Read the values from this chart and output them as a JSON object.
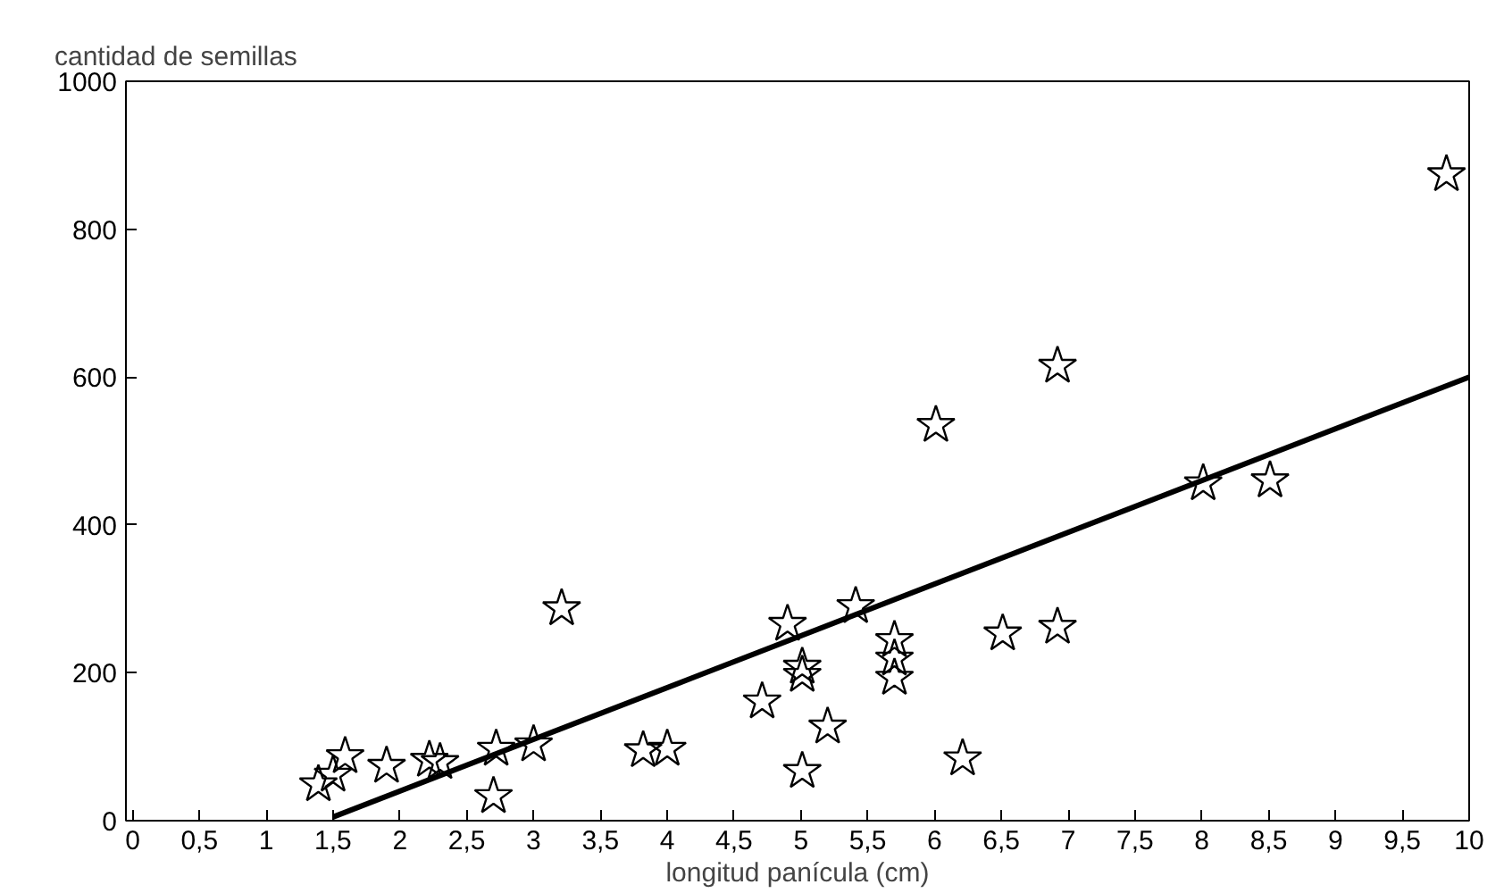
{
  "chart_data": {
    "type": "scatter",
    "xlabel": "longitud panícula (cm)",
    "ylabel": "cantidad de semillas",
    "marker": "star",
    "grid": false,
    "xlim": [
      -0.05,
      10
    ],
    "ylim": [
      0,
      1000
    ],
    "xticks": [
      0,
      {
        "value": 0.5,
        "label": "0,5"
      },
      1,
      {
        "value": 1.5,
        "label": "1,5"
      },
      2,
      {
        "value": 2.5,
        "label": "2,5"
      },
      3,
      {
        "value": 3.5,
        "label": "3,5"
      },
      4,
      {
        "value": 4.5,
        "label": "4,5"
      },
      5,
      {
        "value": 5.5,
        "label": "5,5"
      },
      6,
      {
        "value": 6.5,
        "label": "6,5"
      },
      7,
      {
        "value": 7.5,
        "label": "7,5"
      },
      8,
      {
        "value": 8.5,
        "label": "8,5"
      },
      9,
      {
        "value": 9.5,
        "label": "9,5"
      },
      10
    ],
    "yticks": [
      0,
      200,
      400,
      600,
      800,
      1000
    ],
    "series": [
      {
        "color": "#000000",
        "x": [
          1.39,
          1.5,
          1.59,
          1.9,
          2.22,
          2.3,
          2.72,
          2.7,
          3.0,
          3.21,
          3.82,
          4.0,
          4.71,
          4.9,
          5.01,
          5.01,
          5.01,
          5.2,
          5.41,
          5.7,
          5.7,
          5.7,
          6.01,
          6.21,
          6.51,
          6.92,
          6.92,
          8.01,
          8.51,
          9.83
        ],
        "values": [
          49,
          62,
          87,
          74,
          82,
          79,
          97,
          33,
          103,
          287,
          95,
          97,
          161,
          266,
          208,
          197,
          67,
          127,
          290,
          244,
          219,
          193,
          535,
          84,
          253,
          615,
          262,
          456,
          460,
          874
        ]
      },
      {
        "type": "line",
        "color": "#000000",
        "line_style": "solid",
        "marker": "none",
        "x": [
          1.5,
          10
        ],
        "values": [
          5,
          600
        ]
      }
    ]
  }
}
